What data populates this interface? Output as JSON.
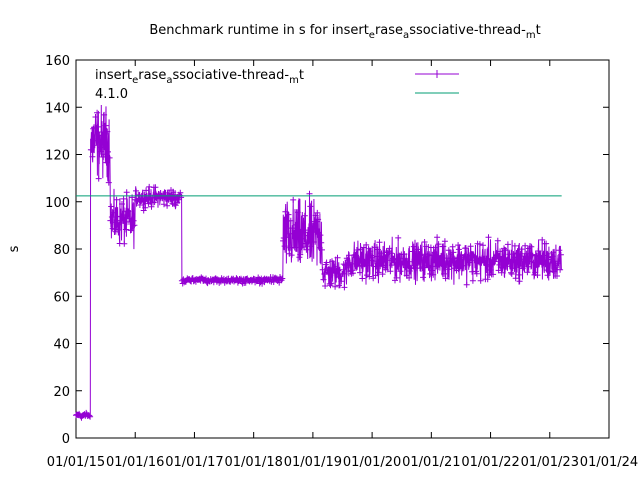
{
  "chart_data": {
    "type": "line",
    "title_parts": [
      "Benchmark runtime in s for insert",
      "e",
      "rase",
      "a",
      "ssociative-thread-",
      "m",
      "t"
    ],
    "ylabel": "s",
    "xlabel": "",
    "ylim": [
      0,
      160
    ],
    "yticks": [
      0,
      20,
      40,
      60,
      80,
      100,
      120,
      140,
      160
    ],
    "xlim": [
      "2015-01-01",
      "2024-01-01"
    ],
    "xtick_labels": [
      "01/01/15",
      "01/01/16",
      "01/01/17",
      "01/01/18",
      "01/01/19",
      "01/01/20",
      "01/01/21",
      "01/01/22",
      "01/01/23",
      "01/01/24"
    ],
    "grid": false,
    "legend": {
      "placement": "top",
      "entries": [
        {
          "name_parts": [
            "insert",
            "e",
            "rase",
            "a",
            "ssociative-thread-",
            "m",
            "t"
          ],
          "color": "#9400d3",
          "style": "line-points"
        },
        {
          "name": "4.1.0",
          "color": "#009e73",
          "style": "line"
        }
      ]
    },
    "series": [
      {
        "name_parts": [
          "insert",
          "e",
          "rase",
          "a",
          "ssociative-thread-",
          "m",
          "t"
        ],
        "color": "#9400d3",
        "marker": "+",
        "segments": [
          {
            "from": "2015-01-01",
            "to": "2015-04-01",
            "mean": 9.5,
            "spread": 1.5
          },
          {
            "from": "2015-04-01",
            "to": "2015-08-01",
            "mean": 125,
            "spread": 22
          },
          {
            "from": "2015-08-01",
            "to": "2016-01-01",
            "mean": 92,
            "spread": 15
          },
          {
            "from": "2016-01-01",
            "to": "2016-10-15",
            "mean": 102,
            "spread": 6
          },
          {
            "from": "2016-10-15",
            "to": "2018-07-01",
            "mean": 67,
            "spread": 2
          },
          {
            "from": "2018-07-01",
            "to": "2019-03-01",
            "mean": 85,
            "spread": 22
          },
          {
            "from": "2019-03-01",
            "to": "2019-08-01",
            "mean": 70,
            "spread": 10
          },
          {
            "from": "2019-08-01",
            "to": "2023-03-15",
            "mean": 75,
            "spread": 12
          }
        ]
      },
      {
        "name": "4.1.0",
        "color": "#009e73",
        "x": [
          "2015-01-01",
          "2023-03-15"
        ],
        "values": [
          102.5,
          102.5
        ]
      }
    ]
  }
}
